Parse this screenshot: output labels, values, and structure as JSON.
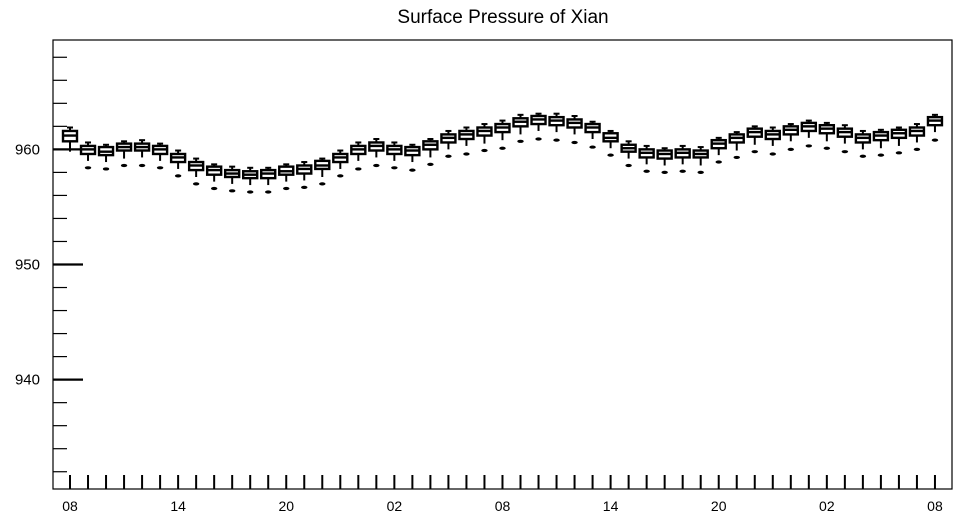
{
  "chart_data": {
    "type": "box",
    "title": "Surface Pressure of Xian",
    "xlabel": "",
    "ylabel": "",
    "ylim": [
      930.5,
      969.5
    ],
    "y_ticks": [
      940,
      950,
      960
    ],
    "x_tick_labels": [
      "08",
      "14",
      "20",
      "02",
      "08",
      "14",
      "20",
      "02",
      "08"
    ],
    "x_tick_label_positions": [
      0,
      6,
      12,
      18,
      24,
      30,
      36,
      42,
      48
    ],
    "grid": false,
    "series": [
      {
        "values": [
          {
            "x": 0,
            "min": 959.8,
            "q1": 960.7,
            "median": 961.2,
            "q3": 961.6,
            "max": 961.9,
            "outlier": null
          },
          {
            "x": 1,
            "min": 959.0,
            "q1": 959.6,
            "median": 960.0,
            "q3": 960.3,
            "max": 960.6,
            "outlier": 958.4
          },
          {
            "x": 2,
            "min": 958.9,
            "q1": 959.5,
            "median": 959.8,
            "q3": 960.2,
            "max": 960.4,
            "outlier": 958.3
          },
          {
            "x": 3,
            "min": 959.2,
            "q1": 959.9,
            "median": 960.2,
            "q3": 960.5,
            "max": 960.7,
            "outlier": 958.6
          },
          {
            "x": 4,
            "min": 959.3,
            "q1": 959.9,
            "median": 960.2,
            "q3": 960.5,
            "max": 960.8,
            "outlier": 958.6
          },
          {
            "x": 5,
            "min": 959.0,
            "q1": 959.6,
            "median": 960.0,
            "q3": 960.3,
            "max": 960.5,
            "outlier": 958.4
          },
          {
            "x": 6,
            "min": 958.3,
            "q1": 958.9,
            "median": 959.3,
            "q3": 959.6,
            "max": 959.9,
            "outlier": 957.7
          },
          {
            "x": 7,
            "min": 957.6,
            "q1": 958.2,
            "median": 958.6,
            "q3": 958.9,
            "max": 959.2,
            "outlier": 957.0
          },
          {
            "x": 8,
            "min": 957.2,
            "q1": 957.8,
            "median": 958.2,
            "q3": 958.5,
            "max": 958.7,
            "outlier": 956.6
          },
          {
            "x": 9,
            "min": 957.0,
            "q1": 957.6,
            "median": 957.9,
            "q3": 958.2,
            "max": 958.5,
            "outlier": 956.4
          },
          {
            "x": 10,
            "min": 956.9,
            "q1": 957.5,
            "median": 957.8,
            "q3": 958.1,
            "max": 958.4,
            "outlier": 956.3
          },
          {
            "x": 11,
            "min": 956.9,
            "q1": 957.5,
            "median": 957.9,
            "q3": 958.2,
            "max": 958.4,
            "outlier": 956.3
          },
          {
            "x": 12,
            "min": 957.2,
            "q1": 957.8,
            "median": 958.1,
            "q3": 958.5,
            "max": 958.7,
            "outlier": 956.6
          },
          {
            "x": 13,
            "min": 957.3,
            "q1": 957.9,
            "median": 958.3,
            "q3": 958.6,
            "max": 958.9,
            "outlier": 956.7
          },
          {
            "x": 14,
            "min": 957.6,
            "q1": 958.3,
            "median": 958.6,
            "q3": 959.0,
            "max": 959.2,
            "outlier": 957.0
          },
          {
            "x": 15,
            "min": 958.3,
            "q1": 958.9,
            "median": 959.3,
            "q3": 959.6,
            "max": 959.9,
            "outlier": 957.7
          },
          {
            "x": 16,
            "min": 959.0,
            "q1": 959.6,
            "median": 960.0,
            "q3": 960.3,
            "max": 960.6,
            "outlier": 958.3
          },
          {
            "x": 17,
            "min": 959.3,
            "q1": 959.9,
            "median": 960.3,
            "q3": 960.6,
            "max": 960.9,
            "outlier": 958.6
          },
          {
            "x": 18,
            "min": 959.0,
            "q1": 959.6,
            "median": 960.0,
            "q3": 960.3,
            "max": 960.6,
            "outlier": 958.4
          },
          {
            "x": 19,
            "min": 958.9,
            "q1": 959.5,
            "median": 959.9,
            "q3": 960.2,
            "max": 960.4,
            "outlier": 958.2
          },
          {
            "x": 20,
            "min": 959.3,
            "q1": 960.0,
            "median": 960.4,
            "q3": 960.7,
            "max": 960.9,
            "outlier": 958.7
          },
          {
            "x": 21,
            "min": 960.0,
            "q1": 960.6,
            "median": 961.0,
            "q3": 961.3,
            "max": 961.6,
            "outlier": 959.4
          },
          {
            "x": 22,
            "min": 960.3,
            "q1": 960.9,
            "median": 961.3,
            "q3": 961.6,
            "max": 961.9,
            "outlier": 959.6
          },
          {
            "x": 23,
            "min": 960.5,
            "q1": 961.2,
            "median": 961.6,
            "q3": 961.9,
            "max": 962.2,
            "outlier": 959.9
          },
          {
            "x": 24,
            "min": 960.8,
            "q1": 961.5,
            "median": 961.9,
            "q3": 962.2,
            "max": 962.5,
            "outlier": 960.1
          },
          {
            "x": 25,
            "min": 961.3,
            "q1": 962.0,
            "median": 962.4,
            "q3": 962.7,
            "max": 963.0,
            "outlier": 960.7
          },
          {
            "x": 26,
            "min": 961.6,
            "q1": 962.2,
            "median": 962.6,
            "q3": 962.9,
            "max": 963.1,
            "outlier": 960.9
          },
          {
            "x": 27,
            "min": 961.5,
            "q1": 962.1,
            "median": 962.5,
            "q3": 962.8,
            "max": 963.1,
            "outlier": 960.8
          },
          {
            "x": 28,
            "min": 961.3,
            "q1": 961.9,
            "median": 962.3,
            "q3": 962.6,
            "max": 962.9,
            "outlier": 960.6
          },
          {
            "x": 29,
            "min": 960.9,
            "q1": 961.5,
            "median": 961.9,
            "q3": 962.2,
            "max": 962.4,
            "outlier": 960.2
          },
          {
            "x": 30,
            "min": 960.1,
            "q1": 960.7,
            "median": 961.0,
            "q3": 961.4,
            "max": 961.6,
            "outlier": 959.5
          },
          {
            "x": 31,
            "min": 959.2,
            "q1": 959.8,
            "median": 960.1,
            "q3": 960.4,
            "max": 960.7,
            "outlier": 958.6
          },
          {
            "x": 32,
            "min": 958.7,
            "q1": 959.3,
            "median": 959.7,
            "q3": 960.0,
            "max": 960.3,
            "outlier": 958.1
          },
          {
            "x": 33,
            "min": 958.6,
            "q1": 959.2,
            "median": 959.6,
            "q3": 959.9,
            "max": 960.1,
            "outlier": 958.0
          },
          {
            "x": 34,
            "min": 958.7,
            "q1": 959.3,
            "median": 959.7,
            "q3": 960.0,
            "max": 960.3,
            "outlier": 958.1
          },
          {
            "x": 35,
            "min": 958.6,
            "q1": 959.3,
            "median": 959.6,
            "q3": 959.9,
            "max": 960.2,
            "outlier": 958.0
          },
          {
            "x": 36,
            "min": 959.5,
            "q1": 960.1,
            "median": 960.5,
            "q3": 960.8,
            "max": 961.0,
            "outlier": 958.9
          },
          {
            "x": 37,
            "min": 959.9,
            "q1": 960.6,
            "median": 961.0,
            "q3": 961.3,
            "max": 961.5,
            "outlier": 959.3
          },
          {
            "x": 38,
            "min": 960.4,
            "q1": 961.1,
            "median": 961.5,
            "q3": 961.8,
            "max": 962.0,
            "outlier": 959.8
          },
          {
            "x": 39,
            "min": 960.3,
            "q1": 960.9,
            "median": 961.3,
            "q3": 961.6,
            "max": 961.9,
            "outlier": 959.6
          },
          {
            "x": 40,
            "min": 960.7,
            "q1": 961.3,
            "median": 961.7,
            "q3": 962.0,
            "max": 962.2,
            "outlier": 960.0
          },
          {
            "x": 41,
            "min": 961.0,
            "q1": 961.6,
            "median": 962.0,
            "q3": 962.3,
            "max": 962.5,
            "outlier": 960.3
          },
          {
            "x": 42,
            "min": 960.7,
            "q1": 961.4,
            "median": 961.8,
            "q3": 962.1,
            "max": 962.3,
            "outlier": 960.1
          },
          {
            "x": 43,
            "min": 960.5,
            "q1": 961.1,
            "median": 961.5,
            "q3": 961.8,
            "max": 962.1,
            "outlier": 959.8
          },
          {
            "x": 44,
            "min": 960.0,
            "q1": 960.6,
            "median": 961.0,
            "q3": 961.3,
            "max": 961.6,
            "outlier": 959.4
          },
          {
            "x": 45,
            "min": 960.1,
            "q1": 960.8,
            "median": 961.2,
            "q3": 961.5,
            "max": 961.7,
            "outlier": 959.5
          },
          {
            "x": 46,
            "min": 960.3,
            "q1": 961.0,
            "median": 961.4,
            "q3": 961.7,
            "max": 961.9,
            "outlier": 959.7
          },
          {
            "x": 47,
            "min": 960.6,
            "q1": 961.2,
            "median": 961.6,
            "q3": 961.9,
            "max": 962.2,
            "outlier": 960.0
          },
          {
            "x": 48,
            "min": 961.5,
            "q1": 962.1,
            "median": 962.5,
            "q3": 962.8,
            "max": 963.0,
            "outlier": 960.8
          }
        ]
      }
    ]
  }
}
